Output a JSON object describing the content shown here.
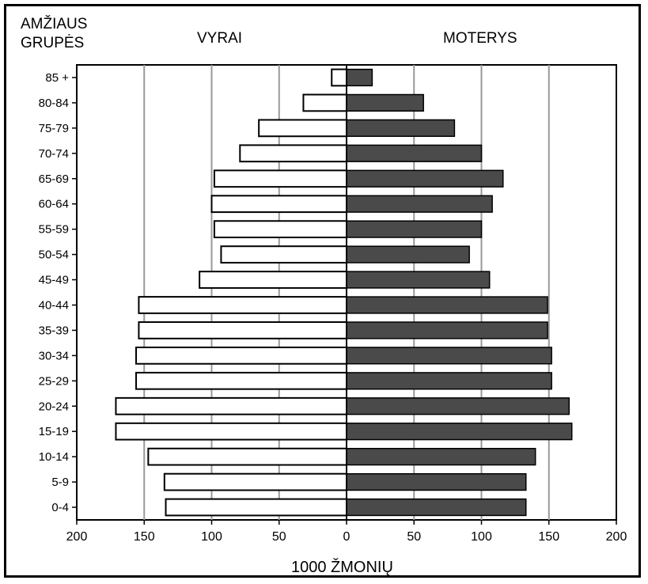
{
  "chart_data": {
    "type": "bar",
    "age_axis_title_line1": "AMŽIAUS",
    "age_axis_title_line2": "GRUPĖS",
    "left_label": "VYRAI",
    "right_label": "MOTERYS",
    "xlabel": "1000 ŽMONIŲ",
    "xlim_each_side": [
      0,
      200
    ],
    "x_ticks_left": [
      "200",
      "150",
      "100",
      "50",
      "0"
    ],
    "x_ticks_right": [
      "50",
      "100",
      "150",
      "200"
    ],
    "categories": [
      "85 +",
      "80-84",
      "75-79",
      "70-74",
      "65-69",
      "60-64",
      "55-59",
      "50-54",
      "45-49",
      "40-44",
      "35-39",
      "30-34",
      "25-29",
      "20-24",
      "15-19",
      "10-14",
      "5-9",
      "0-4"
    ],
    "series": [
      {
        "values": [
          11,
          32,
          65,
          79,
          98,
          100,
          98,
          93,
          109,
          154,
          154,
          156,
          156,
          171,
          171,
          147,
          135,
          134
        ]
      },
      {
        "values": [
          19,
          57,
          80,
          100,
          116,
          108,
          100,
          91,
          106,
          149,
          149,
          152,
          152,
          165,
          167,
          140,
          133,
          133
        ]
      }
    ],
    "gridlines": true,
    "colors": {
      "male_fill": "#ffffff",
      "female_fill": "#4a4a4a",
      "grid": "#999999"
    }
  }
}
